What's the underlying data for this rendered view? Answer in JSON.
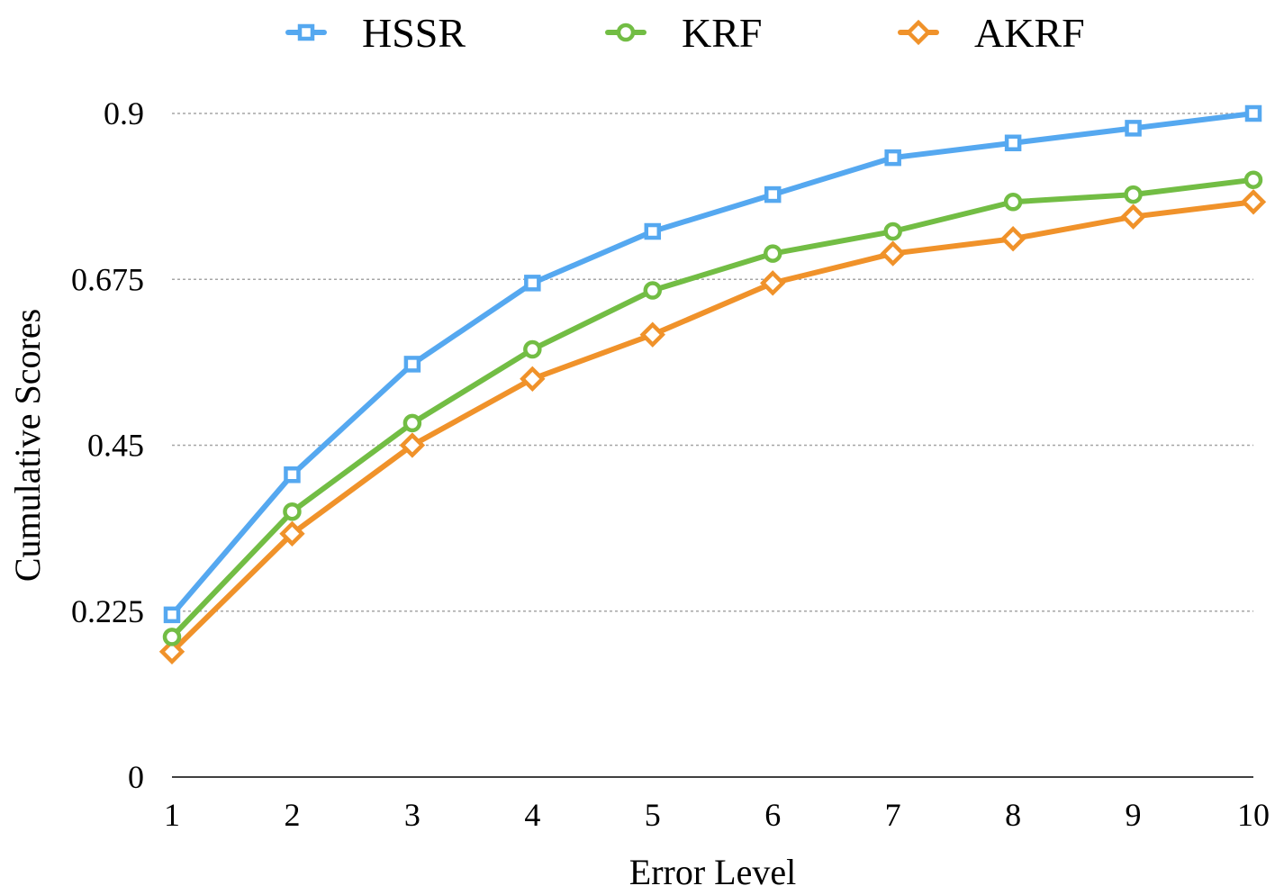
{
  "chart_data": {
    "type": "line",
    "title": "",
    "xlabel": "Error Level",
    "ylabel": "Cumulative Scores",
    "x": [
      1,
      2,
      3,
      4,
      5,
      6,
      7,
      8,
      9,
      10
    ],
    "x_tick_labels": [
      "1",
      "2",
      "3",
      "4",
      "5",
      "6",
      "7",
      "8",
      "9",
      "10"
    ],
    "y_ticks": [
      0,
      0.225,
      0.45,
      0.675,
      0.9
    ],
    "y_tick_labels": [
      "0",
      "0.225",
      "0.45",
      "0.675",
      "0.9"
    ],
    "ylim": [
      0,
      0.9
    ],
    "grid": true,
    "legend_position": "top",
    "series": [
      {
        "name": "HSSR",
        "marker": "square",
        "color": "#55a8f0",
        "values": [
          0.22,
          0.41,
          0.56,
          0.67,
          0.74,
          0.79,
          0.84,
          0.86,
          0.88,
          0.9
        ]
      },
      {
        "name": "KRF",
        "marker": "circle",
        "color": "#72bd44",
        "values": [
          0.19,
          0.36,
          0.48,
          0.58,
          0.66,
          0.71,
          0.74,
          0.78,
          0.79,
          0.81
        ]
      },
      {
        "name": "AKRF",
        "marker": "diamond",
        "color": "#f0922a",
        "values": [
          0.17,
          0.33,
          0.45,
          0.54,
          0.6,
          0.67,
          0.71,
          0.73,
          0.76,
          0.78
        ]
      }
    ]
  }
}
